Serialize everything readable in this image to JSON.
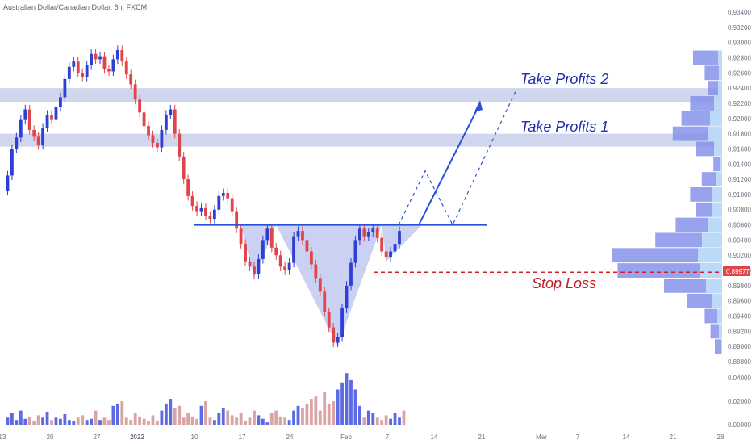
{
  "chart_data": {
    "type": "candlestick",
    "title": "Australian Dollar/Canadian Dollar, 8h, FXCM",
    "y_axis": {
      "ticks": [
        "0.93400",
        "0.93200",
        "0.93000",
        "0.92800",
        "0.92600",
        "0.92400",
        "0.92200",
        "0.92000",
        "0.91800",
        "0.91600",
        "0.91400",
        "0.91200",
        "0.91000",
        "0.90800",
        "0.90600",
        "0.90400",
        "0.90200",
        "0.90000",
        "0.89800",
        "0.89600",
        "0.89400",
        "0.89200",
        "0.89000",
        "0.88800"
      ],
      "range": [
        0.888,
        0.934
      ]
    },
    "volume_axis": {
      "ticks": [
        "0.04000",
        "0.02000",
        "0.00000"
      ],
      "range": [
        0,
        0.04
      ]
    },
    "x_axis": {
      "ticks": [
        "13",
        "20",
        "27",
        "2022",
        "10",
        "17",
        "24",
        "Feb",
        "7",
        "14",
        "21",
        "Mar",
        "7",
        "14",
        "21",
        "28"
      ]
    },
    "price_path": [
      0.9105,
      0.9125,
      0.916,
      0.9175,
      0.9198,
      0.9212,
      0.9185,
      0.9176,
      0.9165,
      0.9188,
      0.9205,
      0.9198,
      0.9215,
      0.9228,
      0.9252,
      0.9268,
      0.9275,
      0.926,
      0.9255,
      0.927,
      0.9285,
      0.9278,
      0.9282,
      0.9265,
      0.9262,
      0.9278,
      0.929,
      0.9275,
      0.9258,
      0.9245,
      0.9225,
      0.9208,
      0.919,
      0.9178,
      0.9168,
      0.9162,
      0.9185,
      0.9205,
      0.9212,
      0.918,
      0.915,
      0.912,
      0.9098,
      0.9085,
      0.9078,
      0.9082,
      0.9072,
      0.9068,
      0.908,
      0.9098,
      0.9102,
      0.9095,
      0.9078,
      0.9055,
      0.9035,
      0.9012,
      0.9005,
      0.8995,
      0.9015,
      0.904,
      0.9055,
      0.903,
      0.902,
      0.9005,
      0.9,
      0.901,
      0.9045,
      0.9052,
      0.904,
      0.9025,
      0.9008,
      0.899,
      0.8972,
      0.8945,
      0.8925,
      0.8905,
      0.8912,
      0.895,
      0.898,
      0.901,
      0.904,
      0.9055,
      0.9045,
      0.905,
      0.9055,
      0.9043,
      0.9025,
      0.9018,
      0.9025,
      0.9035,
      0.9052
    ],
    "volume_path": [
      0.006,
      0.01,
      0.004,
      0.012,
      0.005,
      0.007,
      0.003,
      0.008,
      0.006,
      0.011,
      0.004,
      0.006,
      0.005,
      0.009,
      0.004,
      0.003,
      0.006,
      0.008,
      0.004,
      0.005,
      0.012,
      0.004,
      0.006,
      0.004,
      0.016,
      0.018,
      0.02,
      0.006,
      0.004,
      0.01,
      0.007,
      0.005,
      0.003,
      0.008,
      0.003,
      0.012,
      0.018,
      0.022,
      0.014,
      0.016,
      0.006,
      0.01,
      0.007,
      0.005,
      0.016,
      0.02,
      0.006,
      0.004,
      0.01,
      0.014,
      0.012,
      0.008,
      0.006,
      0.01,
      0.003,
      0.006,
      0.012,
      0.008,
      0.005,
      0.002,
      0.01,
      0.012,
      0.007,
      0.006,
      0.004,
      0.012,
      0.016,
      0.014,
      0.018,
      0.022,
      0.024,
      0.012,
      0.028,
      0.018,
      0.02,
      0.03,
      0.036,
      0.044,
      0.038,
      0.03,
      0.016,
      0.006,
      0.012,
      0.01,
      0.006,
      0.004,
      0.008,
      0.005,
      0.01,
      0.006,
      0.012
    ],
    "volume_profile": [
      {
        "price": 0.928,
        "vol": 0.2,
        "va": 0.05
      },
      {
        "price": 0.926,
        "vol": 0.12,
        "va": 0.04
      },
      {
        "price": 0.924,
        "vol": 0.1,
        "va": 0.05
      },
      {
        "price": 0.922,
        "vol": 0.22,
        "va": 0.1
      },
      {
        "price": 0.92,
        "vol": 0.28,
        "va": 0.15
      },
      {
        "price": 0.918,
        "vol": 0.34,
        "va": 0.18
      },
      {
        "price": 0.916,
        "vol": 0.18,
        "va": 0.1
      },
      {
        "price": 0.914,
        "vol": 0.06,
        "va": 0.03
      },
      {
        "price": 0.912,
        "vol": 0.14,
        "va": 0.08
      },
      {
        "price": 0.91,
        "vol": 0.22,
        "va": 0.12
      },
      {
        "price": 0.908,
        "vol": 0.18,
        "va": 0.12
      },
      {
        "price": 0.906,
        "vol": 0.32,
        "va": 0.18
      },
      {
        "price": 0.904,
        "vol": 0.46,
        "va": 0.25
      },
      {
        "price": 0.902,
        "vol": 0.76,
        "va": 0.3
      },
      {
        "price": 0.9,
        "vol": 0.72,
        "va": 0.28
      },
      {
        "price": 0.898,
        "vol": 0.4,
        "va": 0.2
      },
      {
        "price": 0.896,
        "vol": 0.24,
        "va": 0.12
      },
      {
        "price": 0.894,
        "vol": 0.12,
        "va": 0.06
      },
      {
        "price": 0.892,
        "vol": 0.08,
        "va": 0.04
      },
      {
        "price": 0.89,
        "vol": 0.05,
        "va": 0.02
      }
    ],
    "zones": [
      {
        "label": "Take Profits 2",
        "low": 0.9222,
        "high": 0.924
      },
      {
        "label": "Take Profits 1",
        "low": 0.9163,
        "high": 0.918
      }
    ],
    "neckline": 0.906,
    "stop_loss": {
      "label": "Stop Loss",
      "value": 0.89977,
      "price_tag": "0.89977"
    },
    "head_low": 0.89,
    "colors": {
      "up": "#2e3fd6",
      "down": "#e0454b",
      "zone": "#aab4e0",
      "neckline": "#2a4fd8",
      "stop": "#d0202a",
      "pattern_fill": "#b8c2ee"
    }
  }
}
